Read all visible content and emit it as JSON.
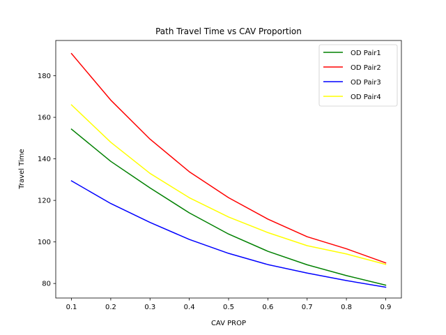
{
  "chart_data": {
    "type": "line",
    "title": "Path Travel Time vs CAV Proportion",
    "xlabel": "CAV PROP",
    "ylabel": "Travel Time",
    "x": [
      0.1,
      0.2,
      0.3,
      0.4,
      0.5,
      0.6,
      0.7,
      0.8,
      0.9
    ],
    "xlim": [
      0.06,
      0.94
    ],
    "ylim": [
      73,
      197
    ],
    "xticks": [
      "0.1",
      "0.2",
      "0.3",
      "0.4",
      "0.5",
      "0.6",
      "0.7",
      "0.8",
      "0.9"
    ],
    "xtick_values": [
      0.1,
      0.2,
      0.3,
      0.4,
      0.5,
      0.6,
      0.7,
      0.8,
      0.9
    ],
    "yticks": [
      "80",
      "100",
      "120",
      "140",
      "160",
      "180"
    ],
    "ytick_values": [
      80,
      100,
      120,
      140,
      160,
      180
    ],
    "grid": false,
    "legend_position": "top-right",
    "series": [
      {
        "name": "OD Pair1",
        "color": "#008000",
        "values": [
          154.3,
          138.8,
          126.0,
          114.0,
          103.8,
          95.5,
          89.0,
          83.8,
          79.2
        ]
      },
      {
        "name": "OD Pair2",
        "color": "#ff0000",
        "values": [
          190.7,
          168.3,
          149.5,
          133.8,
          121.3,
          111.0,
          102.5,
          96.7,
          89.9
        ]
      },
      {
        "name": "OD Pair3",
        "color": "#0000ff",
        "values": [
          129.4,
          118.5,
          109.4,
          101.2,
          94.5,
          89.1,
          85.0,
          81.4,
          78.2
        ]
      },
      {
        "name": "OD Pair4",
        "color": "#ffff00",
        "values": [
          166.0,
          148.0,
          133.0,
          121.3,
          112.0,
          104.5,
          98.2,
          94.2,
          89.2
        ]
      }
    ]
  }
}
